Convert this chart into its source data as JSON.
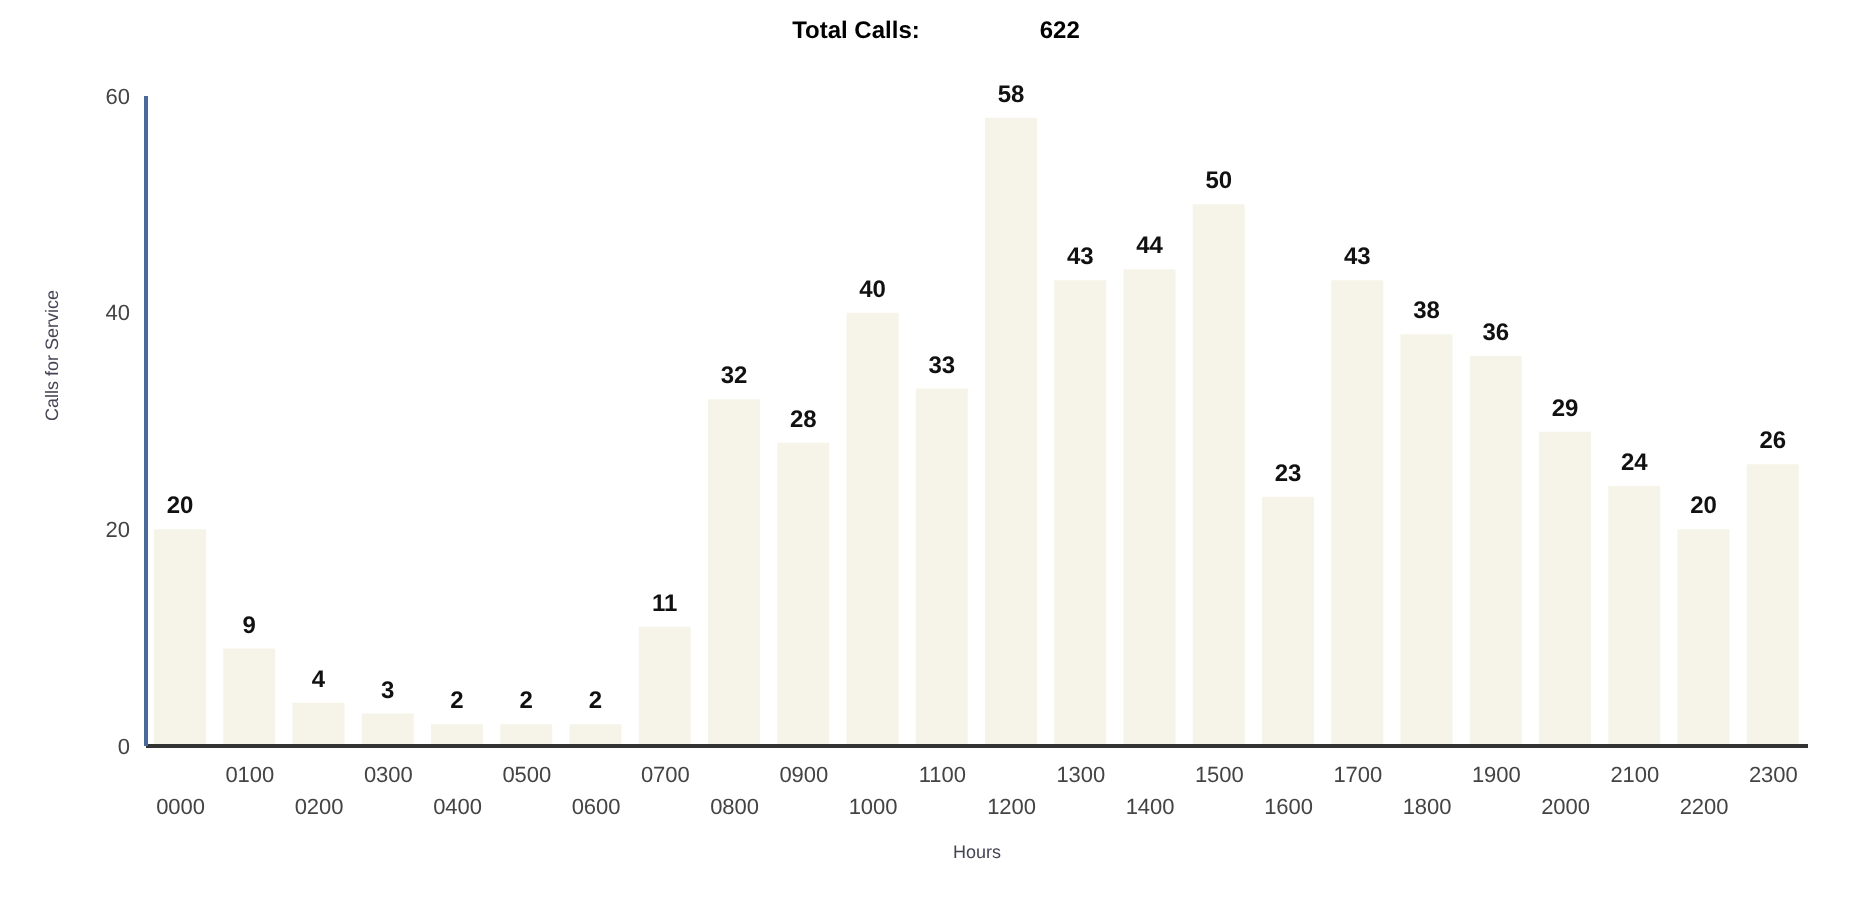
{
  "chart_data": {
    "type": "bar",
    "title": "Total Calls:",
    "annotations": [
      "622"
    ],
    "xlabel": "Hours",
    "ylabel": "Calls for Service",
    "categories": [
      "0000",
      "0100",
      "0200",
      "0300",
      "0400",
      "0500",
      "0600",
      "0700",
      "0800",
      "0900",
      "1000",
      "1100",
      "1200",
      "1300",
      "1400",
      "1500",
      "1600",
      "1700",
      "1800",
      "1900",
      "2000",
      "2100",
      "2200",
      "2300"
    ],
    "values": [
      20,
      9,
      4,
      3,
      2,
      2,
      2,
      11,
      32,
      28,
      40,
      33,
      58,
      43,
      44,
      50,
      23,
      43,
      38,
      36,
      29,
      24,
      20,
      26
    ],
    "color": "#f6f4e8",
    "ylim": [
      0,
      60
    ],
    "yticks": [
      0,
      20,
      40,
      60
    ],
    "grid": false,
    "data_labels": true
  }
}
